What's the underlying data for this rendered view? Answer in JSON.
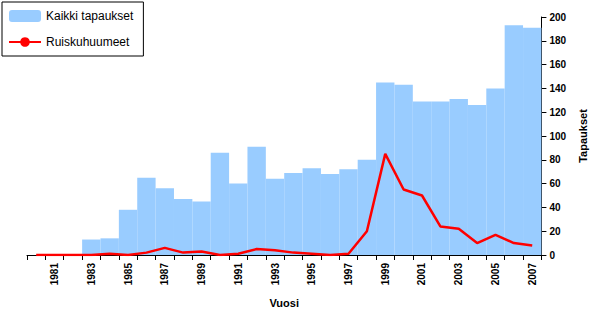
{
  "chart_data": {
    "type": "bar",
    "categories": [
      null,
      "1981",
      null,
      "1983",
      null,
      "1985",
      null,
      "1987",
      null,
      "1989",
      null,
      "1991",
      null,
      "1993",
      null,
      "1995",
      null,
      "1997",
      null,
      "1999",
      null,
      "2001",
      null,
      "2003",
      null,
      "2005",
      null,
      "2007"
    ],
    "series": [
      {
        "name": "Kaikki tapaukset",
        "type": "bar",
        "color": "#99ccff",
        "values": [
          0,
          0,
          0,
          13,
          14,
          38,
          65,
          56,
          47,
          45,
          86,
          60,
          91,
          64,
          69,
          73,
          68,
          72,
          80,
          145,
          143,
          129,
          129,
          131,
          126,
          140,
          193,
          191
        ]
      },
      {
        "name": "Ruiskuhuumeet",
        "type": "line",
        "color": "#ff0000",
        "values": [
          0,
          0,
          0,
          0,
          1,
          0,
          2,
          6,
          2,
          3,
          0,
          1,
          5,
          4,
          2,
          1,
          0,
          1,
          20,
          85,
          55,
          50,
          24,
          22,
          10,
          17,
          10,
          8
        ]
      }
    ],
    "x_label": "Vuosi",
    "y_label": "Tapaukset",
    "ylim": [
      0,
      200
    ],
    "yticks": [
      0,
      20,
      40,
      60,
      80,
      100,
      120,
      140,
      160,
      180,
      200
    ],
    "grid": false,
    "legend": "upper left"
  }
}
